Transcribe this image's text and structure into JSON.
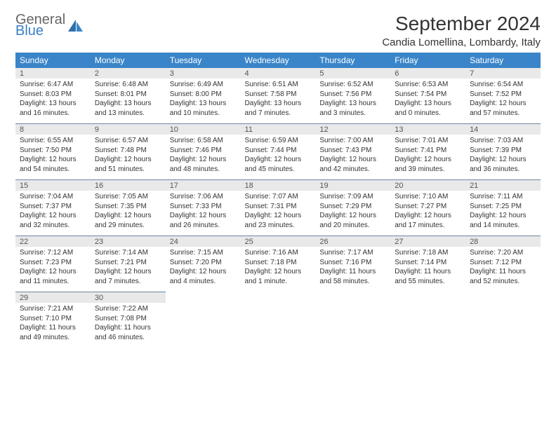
{
  "logo": {
    "line1": "General",
    "line2": "Blue"
  },
  "title": "September 2024",
  "location": "Candia Lomellina, Lombardy, Italy",
  "colors": {
    "header_bg": "#3a85c9",
    "header_text": "#ffffff",
    "numrow_bg": "#e9e9e9",
    "numrow_border": "#6a88a3",
    "body_text": "#333333",
    "logo_gray": "#666666",
    "logo_blue": "#3a7fc4",
    "page_bg": "#ffffff"
  },
  "typography": {
    "title_fontsize": 28,
    "location_fontsize": 15,
    "dayhead_fontsize": 12,
    "daynum_fontsize": 11,
    "cell_fontsize": 10
  },
  "day_headers": [
    "Sunday",
    "Monday",
    "Tuesday",
    "Wednesday",
    "Thursday",
    "Friday",
    "Saturday"
  ],
  "weeks": [
    [
      {
        "n": "1",
        "sr": "Sunrise: 6:47 AM",
        "ss": "Sunset: 8:03 PM",
        "dl": "Daylight: 13 hours and 16 minutes."
      },
      {
        "n": "2",
        "sr": "Sunrise: 6:48 AM",
        "ss": "Sunset: 8:01 PM",
        "dl": "Daylight: 13 hours and 13 minutes."
      },
      {
        "n": "3",
        "sr": "Sunrise: 6:49 AM",
        "ss": "Sunset: 8:00 PM",
        "dl": "Daylight: 13 hours and 10 minutes."
      },
      {
        "n": "4",
        "sr": "Sunrise: 6:51 AM",
        "ss": "Sunset: 7:58 PM",
        "dl": "Daylight: 13 hours and 7 minutes."
      },
      {
        "n": "5",
        "sr": "Sunrise: 6:52 AM",
        "ss": "Sunset: 7:56 PM",
        "dl": "Daylight: 13 hours and 3 minutes."
      },
      {
        "n": "6",
        "sr": "Sunrise: 6:53 AM",
        "ss": "Sunset: 7:54 PM",
        "dl": "Daylight: 13 hours and 0 minutes."
      },
      {
        "n": "7",
        "sr": "Sunrise: 6:54 AM",
        "ss": "Sunset: 7:52 PM",
        "dl": "Daylight: 12 hours and 57 minutes."
      }
    ],
    [
      {
        "n": "8",
        "sr": "Sunrise: 6:55 AM",
        "ss": "Sunset: 7:50 PM",
        "dl": "Daylight: 12 hours and 54 minutes."
      },
      {
        "n": "9",
        "sr": "Sunrise: 6:57 AM",
        "ss": "Sunset: 7:48 PM",
        "dl": "Daylight: 12 hours and 51 minutes."
      },
      {
        "n": "10",
        "sr": "Sunrise: 6:58 AM",
        "ss": "Sunset: 7:46 PM",
        "dl": "Daylight: 12 hours and 48 minutes."
      },
      {
        "n": "11",
        "sr": "Sunrise: 6:59 AM",
        "ss": "Sunset: 7:44 PM",
        "dl": "Daylight: 12 hours and 45 minutes."
      },
      {
        "n": "12",
        "sr": "Sunrise: 7:00 AM",
        "ss": "Sunset: 7:43 PM",
        "dl": "Daylight: 12 hours and 42 minutes."
      },
      {
        "n": "13",
        "sr": "Sunrise: 7:01 AM",
        "ss": "Sunset: 7:41 PM",
        "dl": "Daylight: 12 hours and 39 minutes."
      },
      {
        "n": "14",
        "sr": "Sunrise: 7:03 AM",
        "ss": "Sunset: 7:39 PM",
        "dl": "Daylight: 12 hours and 36 minutes."
      }
    ],
    [
      {
        "n": "15",
        "sr": "Sunrise: 7:04 AM",
        "ss": "Sunset: 7:37 PM",
        "dl": "Daylight: 12 hours and 32 minutes."
      },
      {
        "n": "16",
        "sr": "Sunrise: 7:05 AM",
        "ss": "Sunset: 7:35 PM",
        "dl": "Daylight: 12 hours and 29 minutes."
      },
      {
        "n": "17",
        "sr": "Sunrise: 7:06 AM",
        "ss": "Sunset: 7:33 PM",
        "dl": "Daylight: 12 hours and 26 minutes."
      },
      {
        "n": "18",
        "sr": "Sunrise: 7:07 AM",
        "ss": "Sunset: 7:31 PM",
        "dl": "Daylight: 12 hours and 23 minutes."
      },
      {
        "n": "19",
        "sr": "Sunrise: 7:09 AM",
        "ss": "Sunset: 7:29 PM",
        "dl": "Daylight: 12 hours and 20 minutes."
      },
      {
        "n": "20",
        "sr": "Sunrise: 7:10 AM",
        "ss": "Sunset: 7:27 PM",
        "dl": "Daylight: 12 hours and 17 minutes."
      },
      {
        "n": "21",
        "sr": "Sunrise: 7:11 AM",
        "ss": "Sunset: 7:25 PM",
        "dl": "Daylight: 12 hours and 14 minutes."
      }
    ],
    [
      {
        "n": "22",
        "sr": "Sunrise: 7:12 AM",
        "ss": "Sunset: 7:23 PM",
        "dl": "Daylight: 12 hours and 11 minutes."
      },
      {
        "n": "23",
        "sr": "Sunrise: 7:14 AM",
        "ss": "Sunset: 7:21 PM",
        "dl": "Daylight: 12 hours and 7 minutes."
      },
      {
        "n": "24",
        "sr": "Sunrise: 7:15 AM",
        "ss": "Sunset: 7:20 PM",
        "dl": "Daylight: 12 hours and 4 minutes."
      },
      {
        "n": "25",
        "sr": "Sunrise: 7:16 AM",
        "ss": "Sunset: 7:18 PM",
        "dl": "Daylight: 12 hours and 1 minute."
      },
      {
        "n": "26",
        "sr": "Sunrise: 7:17 AM",
        "ss": "Sunset: 7:16 PM",
        "dl": "Daylight: 11 hours and 58 minutes."
      },
      {
        "n": "27",
        "sr": "Sunrise: 7:18 AM",
        "ss": "Sunset: 7:14 PM",
        "dl": "Daylight: 11 hours and 55 minutes."
      },
      {
        "n": "28",
        "sr": "Sunrise: 7:20 AM",
        "ss": "Sunset: 7:12 PM",
        "dl": "Daylight: 11 hours and 52 minutes."
      }
    ],
    [
      {
        "n": "29",
        "sr": "Sunrise: 7:21 AM",
        "ss": "Sunset: 7:10 PM",
        "dl": "Daylight: 11 hours and 49 minutes."
      },
      {
        "n": "30",
        "sr": "Sunrise: 7:22 AM",
        "ss": "Sunset: 7:08 PM",
        "dl": "Daylight: 11 hours and 46 minutes."
      },
      null,
      null,
      null,
      null,
      null
    ]
  ]
}
